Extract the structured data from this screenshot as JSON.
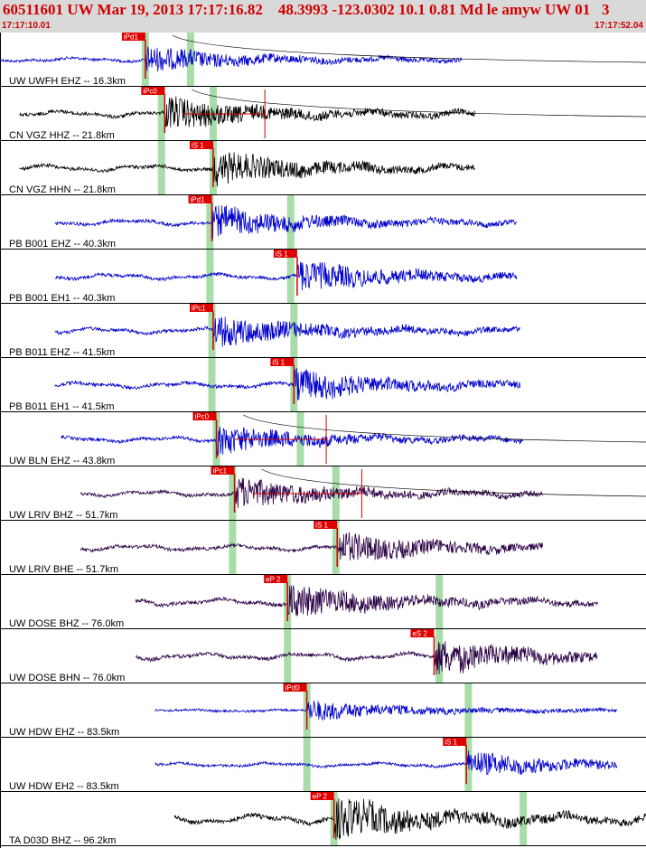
{
  "header": {
    "title": "60511601 UW Mar 19, 2013 17:17:16.82    48.3993 -123.0302 10.1 0.81 Md le amyw UW 01   3",
    "start_time": "17:17:10.01",
    "end_time": "17:17:52.04"
  },
  "colors": {
    "header_bg": "#d9d9d9",
    "header_text": "#d00000",
    "pick_bg": "#e00000",
    "window_green": "#a8dca8",
    "blue_trace": "#0000cc",
    "black_trace": "#000000",
    "purple_trace": "#2a0044"
  },
  "traces": [
    {
      "label": "UW UWFH EHZ -- 16.3km",
      "pick": "iPd1",
      "color": "blue_trace",
      "tStart": 0.0,
      "tEnd": 0.715,
      "pickT": 0.225,
      "green": [
        0.225,
        0.295
      ],
      "amp": 0.35,
      "curve": true
    },
    {
      "label": "CN VGZ HHZ -- 21.8km",
      "pick": "iPc0",
      "color": "black_trace",
      "tStart": 0.03,
      "tEnd": 0.735,
      "pickT": 0.255,
      "green": [
        0.25,
        0.33
      ],
      "amp": 0.55,
      "curve": true,
      "spike": 0.41
    },
    {
      "label": "CN VGZ HHN -- 21.8km",
      "pick": "iS 1",
      "color": "black_trace",
      "tStart": 0.03,
      "tEnd": 0.735,
      "pickT": 0.33,
      "green": [
        0.25,
        0.33
      ],
      "amp": 0.55,
      "curve": false
    },
    {
      "label": "PB B001 EHZ -- 40.3km",
      "pick": "iPd1",
      "color": "blue_trace",
      "tStart": 0.085,
      "tEnd": 0.8,
      "pickT": 0.328,
      "green": [
        0.325,
        0.45
      ],
      "amp": 0.5,
      "curve": false
    },
    {
      "label": "PB B001 EH1 -- 40.3km",
      "pick": "iS 1",
      "color": "blue_trace",
      "tStart": 0.085,
      "tEnd": 0.8,
      "pickT": 0.46,
      "green": [
        0.325,
        0.45
      ],
      "amp": 0.5,
      "curve": false
    },
    {
      "label": "PB B011 EHZ -- 41.5km",
      "pick": "iPc1",
      "color": "blue_trace",
      "tStart": 0.085,
      "tEnd": 0.805,
      "pickT": 0.33,
      "green": [
        0.328,
        0.455
      ],
      "amp": 0.5,
      "curve": false
    },
    {
      "label": "PB B011 EH1 -- 41.5km",
      "pick": "iS 1",
      "color": "blue_trace",
      "tStart": 0.085,
      "tEnd": 0.805,
      "pickT": 0.455,
      "green": [
        0.328,
        0.455
      ],
      "amp": 0.5,
      "curve": false
    },
    {
      "label": "UW BLN EHZ -- 43.8km",
      "pick": "iPc0",
      "color": "blue_trace",
      "tStart": 0.095,
      "tEnd": 0.81,
      "pickT": 0.335,
      "green": [
        0.335,
        0.465
      ],
      "amp": 0.45,
      "curve": true,
      "spike": 0.505
    },
    {
      "label": "UW LRIV BHZ -- 51.7km",
      "pick": "iPc1",
      "color": "purple_trace",
      "tStart": 0.125,
      "tEnd": 0.84,
      "pickT": 0.363,
      "green": [
        0.36,
        0.52
      ],
      "amp": 0.5,
      "curve": true,
      "spike": 0.56
    },
    {
      "label": "UW LRIV BHE -- 51.7km",
      "pick": "iS 1",
      "color": "purple_trace",
      "tStart": 0.125,
      "tEnd": 0.84,
      "pickT": 0.522,
      "green": [
        0.36,
        0.52
      ],
      "amp": 0.5,
      "curve": false
    },
    {
      "label": "UW DOSE BHZ -- 76.0km",
      "pick": "eP 2",
      "color": "purple_trace",
      "tStart": 0.21,
      "tEnd": 0.925,
      "pickT": 0.445,
      "green": [
        0.445,
        0.68
      ],
      "amp": 0.6,
      "curve": false
    },
    {
      "label": "UW DOSE BHN -- 76.0km",
      "pick": "eS 2",
      "color": "purple_trace",
      "tStart": 0.21,
      "tEnd": 0.925,
      "pickT": 0.672,
      "green": [
        0.445,
        0.68
      ],
      "amp": 0.6,
      "curve": false
    },
    {
      "label": "UW HDW EHZ -- 83.5km",
      "pick": "iPd0",
      "color": "blue_trace",
      "tStart": 0.24,
      "tEnd": 0.955,
      "pickT": 0.475,
      "green": [
        0.475,
        0.725
      ],
      "amp": 0.2,
      "curve": false
    },
    {
      "label": "UW HDW EH2 -- 83.5km",
      "pick": "iS 1",
      "color": "blue_trace",
      "tStart": 0.24,
      "tEnd": 0.955,
      "pickT": 0.722,
      "green": [
        0.475,
        0.725
      ],
      "amp": 0.35,
      "curve": false
    },
    {
      "label": "TA D03D BHZ -- 96.2km",
      "pick": "eP 2",
      "color": "black_trace",
      "tStart": 0.27,
      "tEnd": 1.0,
      "pickT": 0.517,
      "green": [
        0.517,
        0.81
      ],
      "amp": 0.8,
      "curve": false
    }
  ]
}
